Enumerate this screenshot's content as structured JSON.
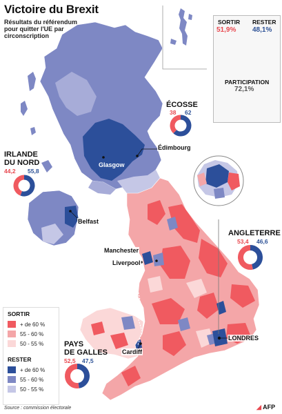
{
  "title": "Victoire du Brexit",
  "subtitle": "Résultats du référendum pour quitter l'UE par circonscription",
  "colors": {
    "leave_high": "#f05a60",
    "leave_mid": "#f4a6a8",
    "leave_low": "#fbd8d8",
    "remain_high": "#2c4f9a",
    "remain_mid": "#7e88c4",
    "remain_low": "#c5c7e6"
  },
  "summary": {
    "leave_label": "SORTIR",
    "leave_value": "51,9%",
    "leave_num": 51.9,
    "remain_label": "RESTER",
    "remain_value": "48,1%",
    "remain_num": 48.1,
    "turnout_label": "PARTICIPATION",
    "turnout_value": "72,1%",
    "turnout_num": 72.1
  },
  "regions": {
    "scotland": {
      "name": "ÉCOSSE",
      "leave": "38",
      "remain": "62",
      "leave_num": 38,
      "remain_num": 62
    },
    "northern_ireland": {
      "name_line1": "IRLANDE",
      "name_line2": "DU NORD",
      "leave": "44,2",
      "remain": "55,8",
      "leave_num": 44.2,
      "remain_num": 55.8
    },
    "england": {
      "name": "ANGLETERRE",
      "leave": "53,4",
      "remain": "46,6",
      "leave_num": 53.4,
      "remain_num": 46.6
    },
    "wales": {
      "name_line1": "PAYS",
      "name_line2": "DE GALLES",
      "leave": "52,5",
      "remain": "47,5",
      "leave_num": 52.5,
      "remain_num": 47.5
    }
  },
  "cities": {
    "edinburgh": "Édimbourg",
    "glasgow": "Glasgow",
    "belfast": "Belfast",
    "manchester": "Manchester",
    "liverpool": "Liverpool",
    "cardiff": "Cardiff",
    "london": "LONDRES"
  },
  "legend": {
    "leave_title": "SORTIR",
    "leave_items": [
      "+ de 60 %",
      "55 - 60 %",
      "50 - 55 %"
    ],
    "remain_title": "RESTER",
    "remain_items": [
      "+ de 60 %",
      "55 - 60 %",
      "50 - 55 %"
    ]
  },
  "source": "Source : commission électorale",
  "credit": "AFP"
}
